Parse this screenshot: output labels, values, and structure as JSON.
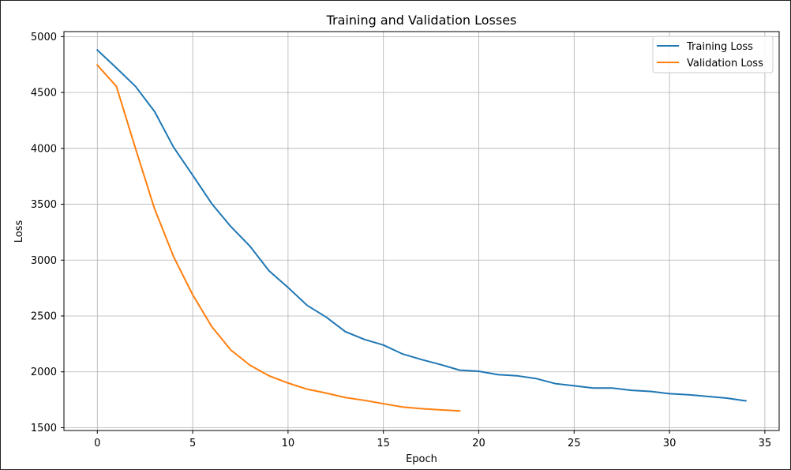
{
  "chart_data": {
    "type": "line",
    "title": "Training and Validation Losses",
    "xlabel": "Epoch",
    "ylabel": "Loss",
    "xlim": [
      -1.75,
      35.75
    ],
    "ylim": [
      1475,
      5045
    ],
    "x_ticks": [
      0,
      5,
      10,
      15,
      20,
      25,
      30,
      35
    ],
    "y_ticks": [
      1500,
      2000,
      2500,
      3000,
      3500,
      4000,
      4500,
      5000
    ],
    "grid": true,
    "legend_position": "top-right",
    "series": [
      {
        "name": "Training Loss",
        "color": "#1f77b4",
        "x": [
          0,
          1,
          2,
          3,
          4,
          5,
          6,
          7,
          8,
          9,
          10,
          11,
          12,
          13,
          14,
          15,
          16,
          17,
          18,
          19,
          20,
          21,
          22,
          23,
          24,
          25,
          26,
          27,
          28,
          29,
          30,
          31,
          32,
          33,
          34
        ],
        "values": [
          4880,
          4720,
          4555,
          4330,
          4010,
          3760,
          3505,
          3300,
          3125,
          2905,
          2755,
          2595,
          2490,
          2360,
          2290,
          2240,
          2160,
          2110,
          2065,
          2015,
          2005,
          1975,
          1965,
          1940,
          1895,
          1875,
          1855,
          1855,
          1835,
          1825,
          1805,
          1795,
          1780,
          1765,
          1740
        ]
      },
      {
        "name": "Validation Loss",
        "color": "#ff7f0e",
        "x": [
          0,
          1,
          2,
          3,
          4,
          5,
          6,
          7,
          8,
          9,
          10,
          11,
          12,
          13,
          14,
          15,
          16,
          17,
          18,
          19
        ],
        "values": [
          4745,
          4555,
          4000,
          3460,
          3030,
          2690,
          2405,
          2195,
          2060,
          1965,
          1900,
          1845,
          1810,
          1770,
          1745,
          1715,
          1685,
          1670,
          1660,
          1650
        ]
      }
    ]
  }
}
